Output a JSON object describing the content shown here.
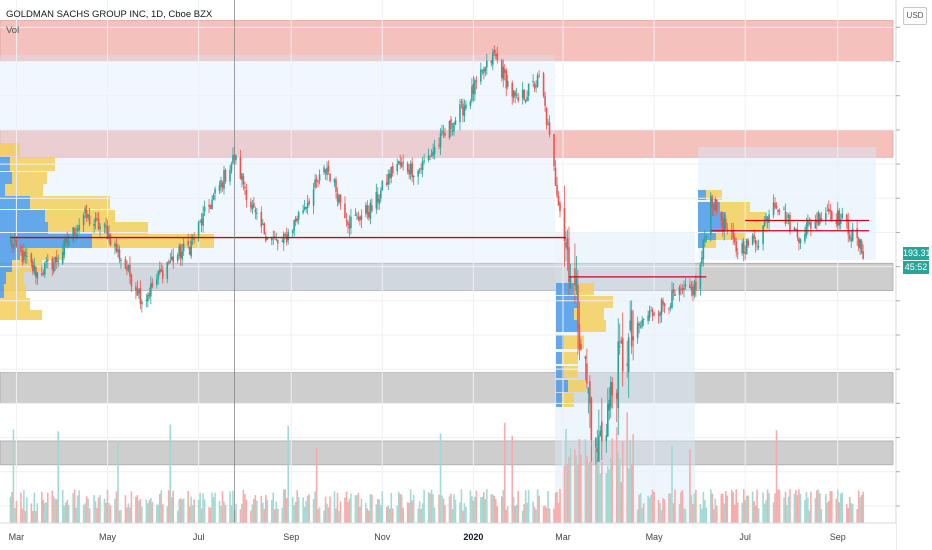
{
  "header": {
    "title": "GOLDMAN SACHS GROUP INC, 1D, Cboe BZX",
    "indicator": "Vol",
    "currency_button": "USD"
  },
  "price_axis": {
    "last_price": "193.31",
    "countdown": "45:52",
    "last_price_color": "#26a69a",
    "countdown_color": "#26a69a"
  },
  "colors": {
    "up": "#26a69a",
    "down": "#ef5350",
    "resistance_zone": "#f2b6b0",
    "support_zone": "#c9c9c9",
    "profile_blue": "#4a9ae8",
    "profile_yellow": "#f5cf5b",
    "level_line": "#d0021b"
  },
  "chart_data": {
    "type": "candlestick",
    "title": "GOLDMAN SACHS GROUP INC, 1D, Cboe BZX",
    "x_ticks": [
      "Mar",
      "May",
      "Jul",
      "Sep",
      "Nov",
      "2020",
      "Mar",
      "May",
      "Jul",
      "Sep"
    ],
    "x_bold_tick": "2020",
    "price_keypoints": [
      [
        "2019-02-25",
        197
      ],
      [
        "2019-03-15",
        188
      ],
      [
        "2019-03-28",
        192
      ],
      [
        "2019-04-15",
        205
      ],
      [
        "2019-05-01",
        200
      ],
      [
        "2019-05-25",
        180
      ],
      [
        "2019-06-10",
        191
      ],
      [
        "2019-06-25",
        196
      ],
      [
        "2019-07-05",
        205
      ],
      [
        "2019-07-25",
        222
      ],
      [
        "2019-08-10",
        202
      ],
      [
        "2019-08-25",
        196
      ],
      [
        "2019-09-10",
        208
      ],
      [
        "2019-09-25",
        219
      ],
      [
        "2019-10-10",
        203
      ],
      [
        "2019-10-25",
        207
      ],
      [
        "2019-11-10",
        220
      ],
      [
        "2019-11-25",
        218
      ],
      [
        "2019-12-15",
        230
      ],
      [
        "2019-12-30",
        240
      ],
      [
        "2020-01-15",
        252
      ],
      [
        "2020-01-30",
        238
      ],
      [
        "2020-02-15",
        245
      ],
      [
        "2020-02-25",
        215
      ],
      [
        "2020-03-10",
        180
      ],
      [
        "2020-03-23",
        135
      ],
      [
        "2020-04-08",
        162
      ],
      [
        "2020-04-25",
        175
      ],
      [
        "2020-05-10",
        180
      ],
      [
        "2020-05-30",
        184
      ],
      [
        "2020-06-08",
        210
      ],
      [
        "2020-06-25",
        195
      ],
      [
        "2020-07-10",
        198
      ],
      [
        "2020-07-20",
        210
      ],
      [
        "2020-08-05",
        199
      ],
      [
        "2020-08-25",
        207
      ],
      [
        "2020-09-05",
        203
      ],
      [
        "2020-09-20",
        193
      ]
    ],
    "last_price": 193.31,
    "resistance_zones": [
      [
        250,
        262
      ],
      [
        222,
        230
      ]
    ],
    "support_zones": [
      [
        183,
        191
      ],
      [
        150,
        159
      ],
      [
        132,
        139
      ]
    ],
    "level_lines": [
      {
        "price": 198.5,
        "from": "2019-02-25",
        "to": "2020-03-03"
      },
      {
        "price": 187,
        "from": "2020-03-05",
        "to": "2020-06-05"
      },
      {
        "price": 200.5,
        "from": "2020-06-08",
        "to": "2020-09-22"
      },
      {
        "price": 203.5,
        "from": "2020-07-01",
        "to": "2020-09-22"
      }
    ],
    "crosshair_date": "2019-07-25",
    "y_range": [
      115,
      268
    ],
    "grid": true,
    "legend": "top-left"
  }
}
